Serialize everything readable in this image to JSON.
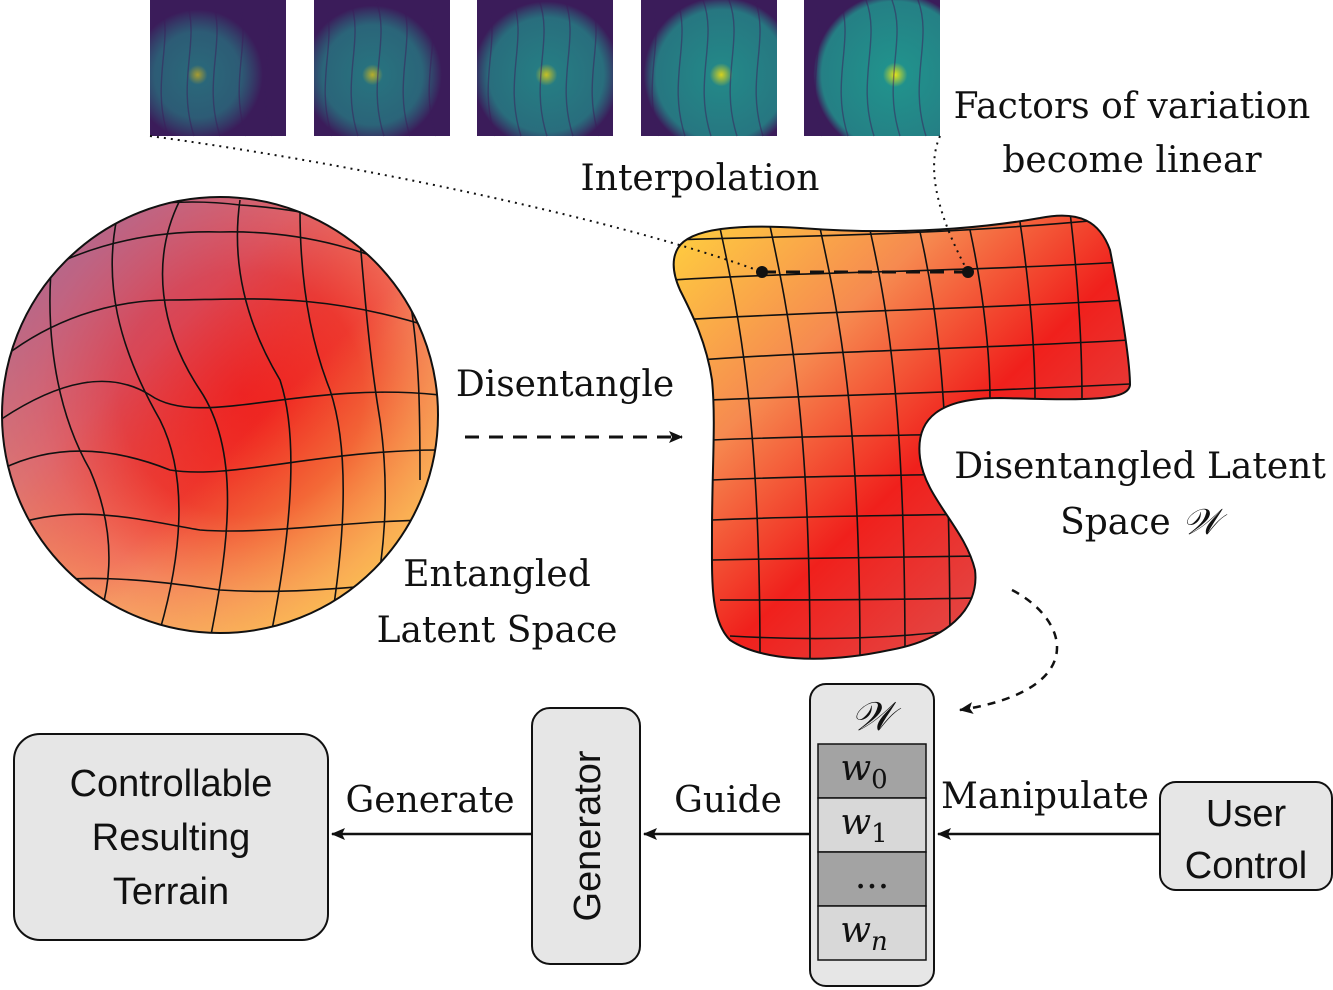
{
  "labels": {
    "interpolation": "Interpolation",
    "factors_line1": "Factors of variation",
    "factors_line2": "become linear",
    "disentangle": "Disentangle",
    "entangled_line1": "Entangled",
    "entangled_line2": "Latent Space",
    "disentangled_line1": "Disentangled Latent",
    "disentangled_line2": "Space",
    "w_symbol": "𝒲",
    "generate": "Generate",
    "guide": "Guide",
    "manipulate": "Manipulate"
  },
  "boxes": {
    "result_line1": "Controllable",
    "result_line2": "Resulting",
    "result_line3": "Terrain",
    "generator": "Generator",
    "user_line1": "User",
    "user_line2": "Control"
  },
  "w_stack": {
    "header": "𝒲",
    "cells": [
      {
        "base": "w",
        "sub": "0",
        "shade": "#a3a3a3"
      },
      {
        "base": "w",
        "sub": "1",
        "shade": "#d8d8d8"
      },
      {
        "base": "...",
        "sub": "",
        "shade": "#a3a3a3"
      },
      {
        "base": "w",
        "sub": "n",
        "shade": "#d8d8d8"
      }
    ]
  },
  "terrain_tiles": [
    {
      "name": "terrain-tile-1",
      "intensity": 0.2
    },
    {
      "name": "terrain-tile-2",
      "intensity": 0.4
    },
    {
      "name": "terrain-tile-3",
      "intensity": 0.6
    },
    {
      "name": "terrain-tile-4",
      "intensity": 0.8
    },
    {
      "name": "terrain-tile-5",
      "intensity": 1.0
    }
  ],
  "colors": {
    "viridis_dark": "#3b1c5a",
    "viridis_mid": "#21918c",
    "viridis_light": "#e5e419",
    "heat_red": "#f0201c",
    "heat_yellow": "#ffd24a",
    "heat_purple": "#9a6fa8",
    "box_fill": "#e6e6e6"
  }
}
